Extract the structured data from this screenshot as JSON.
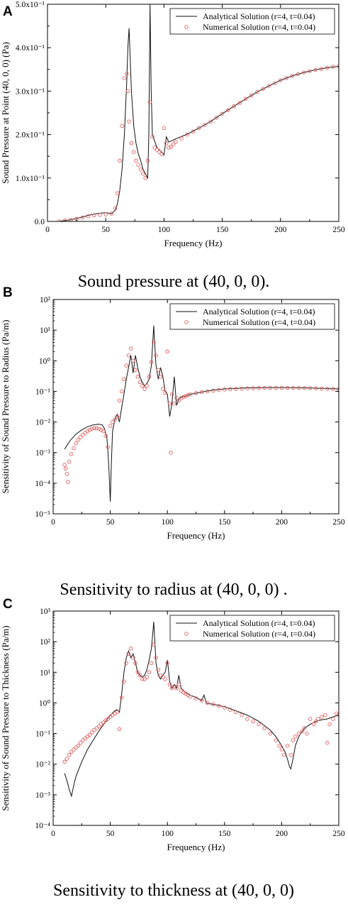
{
  "chart_data": [
    {
      "type": "line",
      "panel": "A",
      "caption": "Sound pressure at (40, 0, 0).",
      "xlabel": "Frequency (Hz)",
      "ylabel": "Sound Pressure at Point (40, 0, 0) (Pa)",
      "xscale": "linear",
      "yscale": "linear",
      "xlim": [
        0,
        250
      ],
      "ylim": [
        0,
        0.5
      ],
      "xticks": [
        0,
        50,
        100,
        150,
        200,
        250
      ],
      "xtick_labels": [
        "0",
        "50",
        "100",
        "150",
        "200",
        "250"
      ],
      "yticks": [
        0,
        0.1,
        0.2,
        0.3,
        0.4,
        0.5
      ],
      "ytick_labels": [
        "0.0",
        "1.0x10⁻¹",
        "2.0x10⁻¹",
        "3.0x10⁻¹",
        "4.0x10⁻¹",
        "5.0x10⁻¹"
      ],
      "legend_position": "top-right",
      "grid": false,
      "series": [
        {
          "name": "Analytical Solution (r=4, t=0.04)",
          "style": "line",
          "x": [
            10,
            15,
            20,
            25,
            30,
            35,
            40,
            45,
            50,
            55,
            58,
            60,
            62,
            64,
            66,
            68,
            69,
            70,
            72,
            74,
            76,
            78,
            80,
            82,
            84,
            86,
            87,
            88,
            89,
            90,
            92,
            94,
            96,
            98,
            100,
            102,
            104,
            106,
            110,
            120,
            130,
            140,
            150,
            160,
            170,
            180,
            190,
            200,
            210,
            220,
            230,
            240,
            250
          ],
          "y": [
            0.0,
            0.002,
            0.004,
            0.007,
            0.01,
            0.014,
            0.017,
            0.019,
            0.02,
            0.018,
            0.025,
            0.04,
            0.07,
            0.12,
            0.2,
            0.32,
            0.4,
            0.445,
            0.3,
            0.22,
            0.18,
            0.155,
            0.14,
            0.12,
            0.11,
            0.1,
            0.2,
            0.5,
            0.3,
            0.2,
            0.185,
            0.17,
            0.165,
            0.16,
            0.153,
            0.195,
            0.183,
            0.185,
            0.19,
            0.201,
            0.215,
            0.23,
            0.248,
            0.265,
            0.282,
            0.298,
            0.312,
            0.325,
            0.335,
            0.343,
            0.349,
            0.354,
            0.357
          ]
        },
        {
          "name": "Numerical Solution (r=4, t=0.04)",
          "style": "markers",
          "x": [
            10,
            15,
            20,
            25,
            30,
            35,
            40,
            45,
            50,
            55,
            58,
            60,
            62,
            64,
            66,
            68,
            69,
            70,
            72,
            74,
            76,
            78,
            80,
            82,
            84,
            86,
            88,
            90,
            92,
            94,
            96,
            98,
            100,
            102,
            104,
            106,
            108,
            110,
            115,
            120,
            125,
            130,
            135,
            140,
            145,
            150,
            155,
            160,
            165,
            170,
            175,
            180,
            185,
            190,
            195,
            200,
            205,
            210,
            215,
            220,
            225,
            230,
            235,
            240,
            245,
            250
          ],
          "y": [
            0.0,
            0.002,
            0.004,
            0.006,
            0.009,
            0.012,
            0.014,
            0.015,
            0.016,
            0.018,
            0.03,
            0.065,
            0.14,
            0.22,
            0.33,
            0.34,
            0.3,
            0.23,
            0.18,
            0.16,
            0.14,
            0.13,
            0.12,
            0.11,
            0.1,
            0.14,
            0.275,
            0.195,
            0.17,
            0.165,
            0.16,
            0.155,
            0.215,
            0.18,
            0.17,
            0.172,
            0.178,
            0.183,
            0.191,
            0.2,
            0.207,
            0.215,
            0.222,
            0.23,
            0.239,
            0.248,
            0.256,
            0.265,
            0.273,
            0.282,
            0.29,
            0.298,
            0.305,
            0.312,
            0.318,
            0.325,
            0.33,
            0.335,
            0.339,
            0.343,
            0.346,
            0.349,
            0.351,
            0.354,
            0.356,
            0.357
          ]
        }
      ]
    },
    {
      "type": "line",
      "panel": "B",
      "caption": "Sensitivity to radius at (40, 0, 0) .",
      "xlabel": "Frequency (Hz)",
      "ylabel": "Sensitivity of Sound Pressure to Radius (Pa/m)",
      "xscale": "linear",
      "yscale": "log",
      "xlim": [
        0,
        250
      ],
      "ylim": [
        1e-05,
        100
      ],
      "xticks": [
        0,
        50,
        100,
        150,
        200,
        250
      ],
      "xtick_labels": [
        "0",
        "50",
        "100",
        "150",
        "200",
        "250"
      ],
      "yticks": [
        1e-05,
        0.0001,
        0.001,
        0.01,
        0.1,
        1,
        10,
        100
      ],
      "ytick_labels": [
        "10⁻⁵",
        "10⁻⁴",
        "10⁻³",
        "10⁻²",
        "10⁻¹",
        "10⁰",
        "10¹",
        "10²"
      ],
      "legend_position": "top-right",
      "grid": false,
      "series": [
        {
          "name": "Analytical Solution (r=4, t=0.04)",
          "style": "line",
          "x": [
            10,
            15,
            20,
            25,
            30,
            35,
            40,
            43,
            45,
            47,
            48,
            49,
            50,
            51,
            52,
            54,
            56,
            58,
            60,
            62,
            64,
            66,
            68,
            70,
            72,
            74,
            76,
            78,
            80,
            82,
            84,
            86,
            87,
            88,
            89,
            90,
            92,
            94,
            96,
            98,
            100,
            102,
            104,
            106,
            108,
            110,
            112,
            116,
            120,
            130,
            140,
            150,
            160,
            170,
            180,
            190,
            200,
            210,
            220,
            230,
            240,
            250
          ],
          "y": [
            0.0013,
            0.0025,
            0.004,
            0.0055,
            0.007,
            0.008,
            0.0085,
            0.008,
            0.006,
            0.003,
            0.001,
            0.0002,
            2.5e-05,
            0.0005,
            0.005,
            0.012,
            0.018,
            0.01,
            0.03,
            0.08,
            0.25,
            0.6,
            1.5,
            0.4,
            1.5,
            0.6,
            0.3,
            0.2,
            0.15,
            0.18,
            0.25,
            0.7,
            3,
            14,
            3,
            0.7,
            0.25,
            0.6,
            0.3,
            0.1,
            0.08,
            0.015,
            0.04,
            0.3,
            0.035,
            0.055,
            0.065,
            0.07,
            0.08,
            0.095,
            0.11,
            0.12,
            0.125,
            0.13,
            0.132,
            0.133,
            0.133,
            0.132,
            0.13,
            0.127,
            0.124,
            0.12
          ]
        },
        {
          "name": "Numerical Solution (r=4, t=0.04)",
          "style": "markers",
          "x": [
            10,
            11,
            12,
            13,
            14,
            16,
            18,
            20,
            22,
            24,
            26,
            28,
            30,
            32,
            34,
            36,
            38,
            40,
            42,
            44,
            46,
            48,
            50,
            52,
            54,
            56,
            58,
            60,
            62,
            64,
            66,
            68,
            70,
            72,
            74,
            76,
            78,
            80,
            82,
            84,
            86,
            88,
            90,
            92,
            94,
            96,
            98,
            100,
            102,
            103,
            104,
            106,
            108,
            110,
            112,
            114,
            116,
            118,
            120,
            125,
            130,
            135,
            140,
            145,
            150,
            155,
            160,
            165,
            170,
            175,
            180,
            185,
            190,
            195,
            200,
            205,
            210,
            215,
            220,
            225,
            230,
            235,
            240,
            245,
            250
          ],
          "y": [
            0.0004,
            0.0003,
            0.0002,
            0.00011,
            0.0005,
            0.0009,
            0.0014,
            0.002,
            0.0026,
            0.0032,
            0.0038,
            0.0044,
            0.005,
            0.0055,
            0.006,
            0.0062,
            0.0062,
            0.006,
            0.0055,
            0.005,
            0.0035,
            0.0015,
            0.0075,
            0.01,
            0.012,
            0.015,
            0.05,
            0.1,
            0.25,
            0.7,
            1.5,
            2.5,
            1.0,
            0.5,
            0.3,
            0.2,
            0.15,
            0.12,
            0.15,
            0.3,
            0.9,
            4.0,
            1.5,
            0.5,
            0.3,
            0.12,
            0.09,
            2.0,
            0.04,
            0.001,
            0.08,
            0.04,
            0.06,
            0.05,
            0.06,
            0.065,
            0.07,
            0.075,
            0.08,
            0.088,
            0.095,
            0.1,
            0.105,
            0.11,
            0.115,
            0.118,
            0.12,
            0.122,
            0.125,
            0.127,
            0.128,
            0.13,
            0.13,
            0.13,
            0.13,
            0.13,
            0.13,
            0.129,
            0.128,
            0.127,
            0.125,
            0.123,
            0.121,
            0.12,
            0.118
          ]
        }
      ]
    },
    {
      "type": "line",
      "panel": "C",
      "caption": "Sensitivity to thickness at (40, 0, 0)",
      "xlabel": "Frequency (Hz)",
      "ylabel": "Sensitivity of Sound Pressure to Thickness (Pa/m)",
      "xscale": "linear",
      "yscale": "log",
      "xlim": [
        0,
        250
      ],
      "ylim": [
        0.0001,
        1000
      ],
      "xticks": [
        0,
        50,
        100,
        150,
        200,
        250
      ],
      "xtick_labels": [
        "0",
        "50",
        "100",
        "150",
        "200",
        "250"
      ],
      "yticks": [
        0.0001,
        0.001,
        0.01,
        0.1,
        1,
        10,
        100,
        1000
      ],
      "ytick_labels": [
        "10⁻⁴",
        "10⁻³",
        "10⁻²",
        "10⁻¹",
        "10⁰",
        "10¹",
        "10²",
        "10³"
      ],
      "legend_position": "top-right",
      "grid": false,
      "series": [
        {
          "name": "Analytical Solution (r=4, t=0.04)",
          "style": "line",
          "x": [
            10,
            12,
            14,
            16,
            18,
            20,
            25,
            30,
            35,
            40,
            45,
            50,
            54,
            56,
            58,
            60,
            62,
            64,
            66,
            68,
            70,
            72,
            74,
            76,
            78,
            80,
            82,
            84,
            86,
            87,
            88,
            89,
            90,
            92,
            94,
            96,
            98,
            100,
            102,
            104,
            106,
            108,
            110,
            112,
            116,
            120,
            125,
            130,
            132,
            134,
            136,
            140,
            150,
            160,
            170,
            180,
            190,
            195,
            200,
            203,
            205,
            207,
            208,
            210,
            212,
            215,
            220,
            225,
            230,
            235,
            240,
            245,
            250
          ],
          "y": [
            0.005,
            0.003,
            0.0015,
            0.0009,
            0.002,
            0.004,
            0.012,
            0.03,
            0.06,
            0.12,
            0.22,
            0.4,
            0.55,
            0.6,
            0.5,
            2,
            10,
            30,
            50,
            30,
            40,
            20,
            10,
            8,
            7,
            8,
            12,
            25,
            60,
            150,
            450,
            100,
            20,
            8,
            6,
            8,
            10,
            25,
            5,
            3,
            4,
            3,
            8,
            3,
            2.2,
            1.8,
            1.5,
            1.2,
            1.8,
            1.0,
            0.95,
            0.9,
            0.75,
            0.55,
            0.4,
            0.25,
            0.13,
            0.08,
            0.04,
            0.025,
            0.015,
            0.008,
            0.007,
            0.015,
            0.04,
            0.08,
            0.15,
            0.2,
            0.25,
            0.28,
            0.3,
            0.35,
            0.4
          ]
        },
        {
          "name": "Numerical Solution (r=4, t=0.04)",
          "style": "markers",
          "x": [
            10,
            12,
            14,
            16,
            18,
            20,
            22,
            24,
            26,
            28,
            30,
            32,
            34,
            36,
            38,
            40,
            42,
            44,
            46,
            48,
            50,
            52,
            54,
            56,
            58,
            60,
            62,
            64,
            66,
            68,
            70,
            72,
            74,
            76,
            78,
            80,
            82,
            84,
            86,
            88,
            90,
            92,
            94,
            96,
            98,
            100,
            102,
            104,
            106,
            108,
            110,
            112,
            114,
            116,
            118,
            120,
            125,
            130,
            135,
            140,
            145,
            150,
            155,
            160,
            165,
            170,
            175,
            180,
            185,
            190,
            195,
            198,
            200,
            202,
            205,
            208,
            210,
            212,
            215,
            218,
            220,
            222,
            225,
            228,
            230,
            232,
            235,
            238,
            240,
            242,
            245,
            248,
            250
          ],
          "y": [
            0.012,
            0.015,
            0.02,
            0.025,
            0.03,
            0.035,
            0.04,
            0.05,
            0.06,
            0.07,
            0.08,
            0.09,
            0.11,
            0.13,
            0.15,
            0.17,
            0.2,
            0.23,
            0.27,
            0.3,
            0.35,
            0.4,
            0.45,
            0.5,
            0.14,
            1.5,
            5,
            20,
            40,
            60,
            30,
            20,
            10,
            8,
            6,
            6,
            7,
            10,
            20,
            80,
            30,
            12,
            8,
            7,
            6,
            20,
            4,
            3,
            3.5,
            3,
            4,
            2.5,
            2.2,
            2.0,
            1.8,
            1.6,
            1.4,
            1.2,
            1.0,
            0.9,
            0.8,
            0.7,
            0.6,
            0.5,
            0.4,
            0.3,
            0.25,
            0.2,
            0.15,
            0.1,
            0.06,
            0.04,
            0.03,
            0.02,
            0.04,
            0.02,
            0.06,
            0.08,
            0.1,
            0.12,
            0.15,
            0.1,
            0.3,
            0.2,
            0.25,
            0.3,
            0.35,
            0.4,
            0.05,
            0.2,
            0.3,
            0.45,
            0.4
          ]
        }
      ]
    }
  ]
}
